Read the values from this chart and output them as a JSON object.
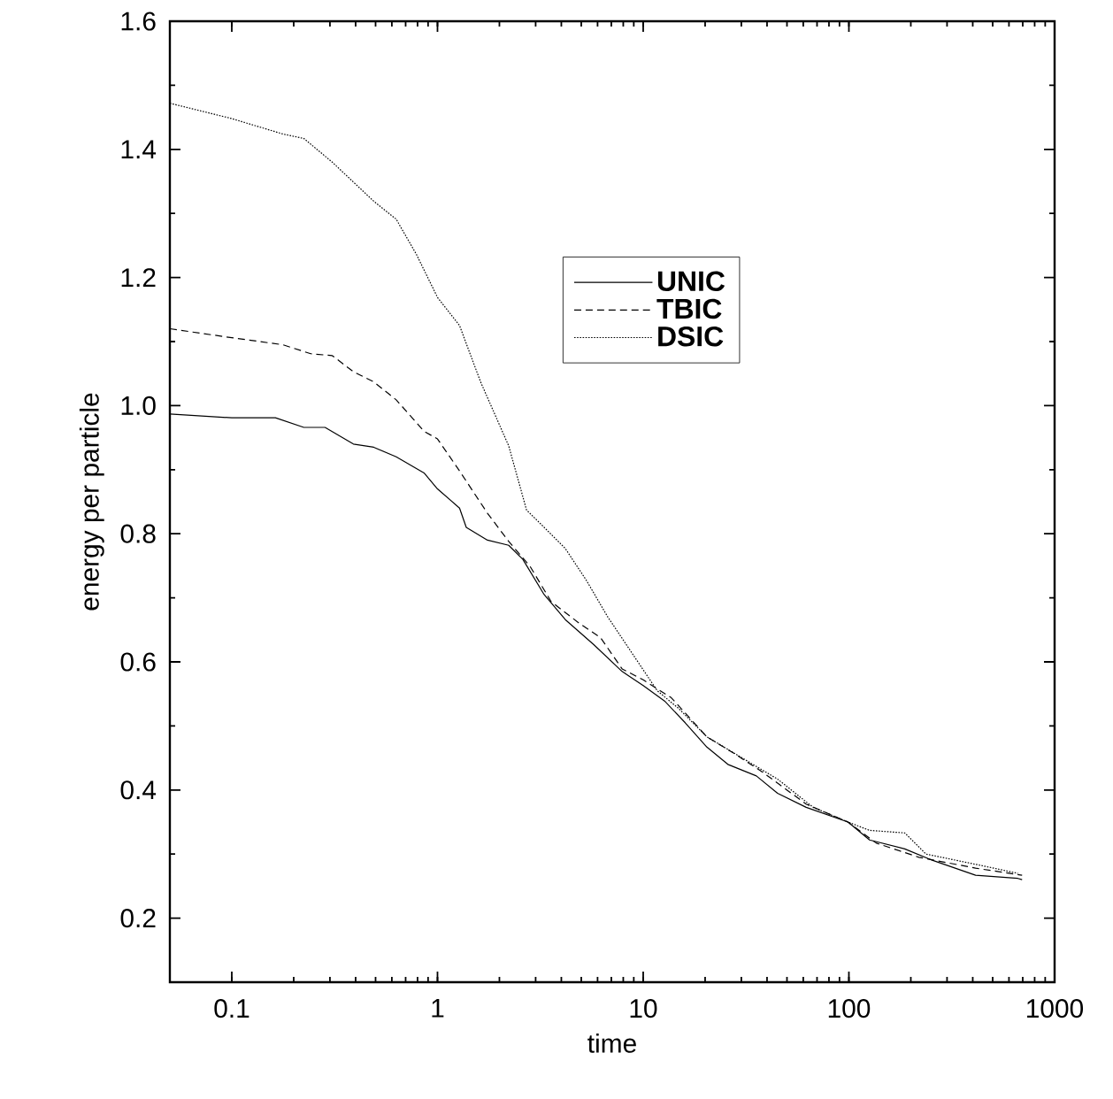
{
  "chart_data": {
    "type": "line",
    "xlabel": "time",
    "ylabel": "energy per particle",
    "log": "x",
    "xlim": [
      0.05,
      1000
    ],
    "ylim": [
      0.1,
      1.6
    ],
    "xticks": [
      0.1,
      1,
      10,
      100,
      1000
    ],
    "yticks": [
      0.2,
      0.4,
      0.6,
      0.8,
      {
        "value": 1.0,
        "label": "1.0"
      },
      1.2,
      1.4,
      1.6
    ],
    "legend": "top right",
    "grid": false,
    "marker": "none",
    "series": [
      {
        "name": "UNIC",
        "color": "#000000",
        "line_style": "solid",
        "x": [
          0.05,
          0.1,
          0.163,
          0.224,
          0.284,
          0.39,
          0.49,
          0.63,
          0.86,
          1,
          1.28,
          1.38,
          1.75,
          2.22,
          2.6,
          3.3,
          4.18,
          5.75,
          7.9,
          10,
          12.7,
          16,
          20.4,
          25.8,
          35.5,
          45,
          62,
          99,
          126,
          187,
          256,
          413,
          663,
          695
        ],
        "values": [
          0.987,
          0.981,
          0.981,
          0.966,
          0.966,
          0.94,
          0.935,
          0.92,
          0.895,
          0.87,
          0.84,
          0.81,
          0.79,
          0.782,
          0.76,
          0.705,
          0.666,
          0.627,
          0.585,
          0.563,
          0.539,
          0.505,
          0.467,
          0.44,
          0.422,
          0.395,
          0.373,
          0.35,
          0.322,
          0.308,
          0.29,
          0.267,
          0.262,
          0.26
        ]
      },
      {
        "name": "TBIC",
        "color": "#000000",
        "line_style": "dashed",
        "x": [
          0.05,
          0.1,
          0.177,
          0.242,
          0.308,
          0.39,
          0.49,
          0.63,
          0.86,
          1,
          1.28,
          1.75,
          2.22,
          2.82,
          3.57,
          4.9,
          6.2,
          7.9,
          10,
          13.7,
          20.4,
          28,
          38,
          62,
          99,
          136,
          219,
          413,
          695
        ],
        "values": [
          1.12,
          1.106,
          1.095,
          1.081,
          1.078,
          1.053,
          1.037,
          1.009,
          0.96,
          0.948,
          0.898,
          0.832,
          0.788,
          0.749,
          0.694,
          0.66,
          0.638,
          0.589,
          0.572,
          0.544,
          0.483,
          0.456,
          0.428,
          0.378,
          0.35,
          0.317,
          0.295,
          0.278,
          0.267
        ]
      },
      {
        "name": "DSIC",
        "color": "#000000",
        "line_style": "dotted",
        "x": [
          0.05,
          0.1,
          0.177,
          0.224,
          0.308,
          0.39,
          0.49,
          0.63,
          0.79,
          1,
          1.28,
          1.62,
          2.22,
          2.71,
          3.3,
          4.18,
          5.3,
          6.7,
          9.2,
          11.7,
          14.9,
          20.4,
          30.3,
          45,
          67,
          99,
          126,
          187,
          237,
          413,
          663
        ],
        "values": [
          1.472,
          1.448,
          1.424,
          1.417,
          1.38,
          1.349,
          1.319,
          1.291,
          1.236,
          1.169,
          1.125,
          1.037,
          0.937,
          0.837,
          0.81,
          0.777,
          0.727,
          0.671,
          0.605,
          0.555,
          0.527,
          0.483,
          0.45,
          0.417,
          0.373,
          0.35,
          0.337,
          0.333,
          0.3,
          0.284,
          0.27
        ]
      }
    ]
  }
}
